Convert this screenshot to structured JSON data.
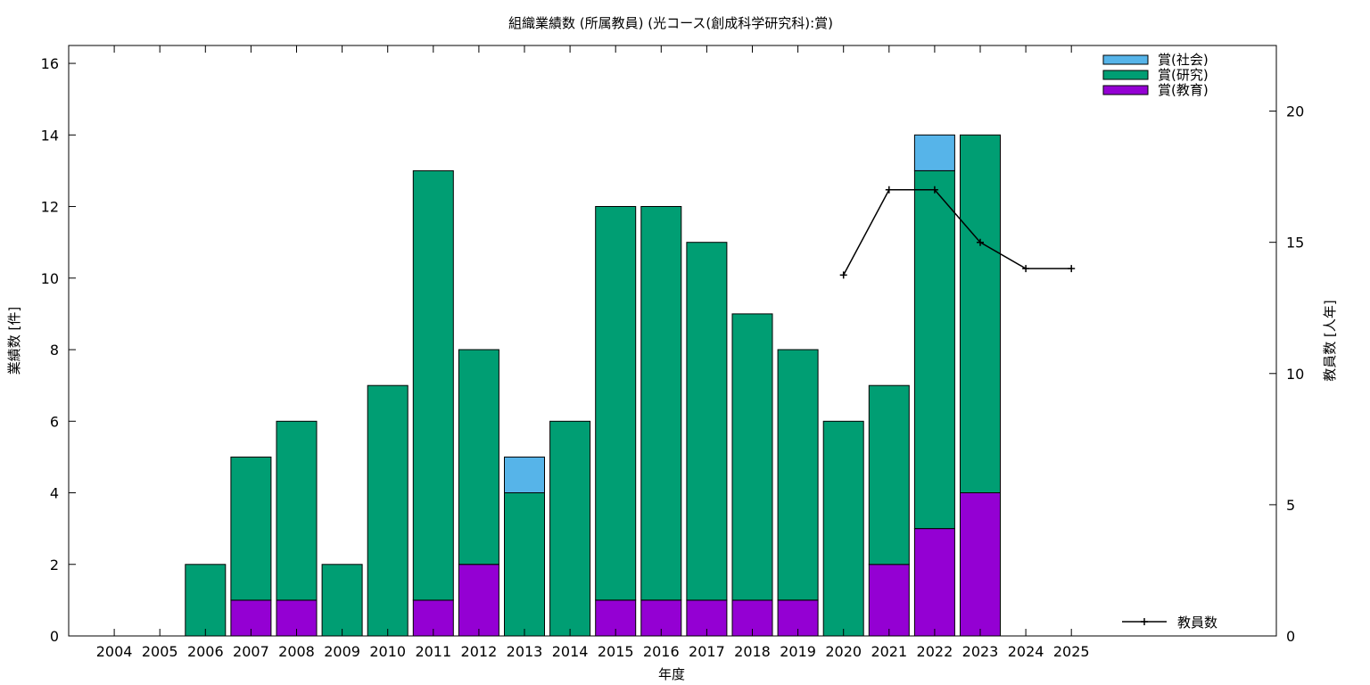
{
  "chart_data": {
    "type": "bar",
    "title": "組織業績数 (所属教員) (光コース(創成科学研究科):賞)",
    "xlabel": "年度",
    "ylabel": "業績数 [件]",
    "y2label": "教員数 [人年]",
    "categories": [
      "2004",
      "2005",
      "2006",
      "2007",
      "2008",
      "2009",
      "2010",
      "2011",
      "2012",
      "2013",
      "2014",
      "2015",
      "2016",
      "2017",
      "2018",
      "2019",
      "2020",
      "2021",
      "2022",
      "2023",
      "2024",
      "2025"
    ],
    "ylim": [
      0,
      16.5
    ],
    "y2lim": [
      0,
      22.5
    ],
    "yticks": [
      "0",
      "2",
      "4",
      "6",
      "8",
      "10",
      "12",
      "14",
      "16"
    ],
    "y2ticks": [
      "0",
      "5",
      "10",
      "15",
      "20"
    ],
    "stacked": true,
    "series": [
      {
        "name": "賞(教育)",
        "color": "#9400d3",
        "values": [
          0,
          0,
          0,
          1,
          1,
          0,
          0,
          1,
          2,
          0,
          0,
          1,
          1,
          1,
          1,
          1,
          0,
          2,
          3,
          4,
          0,
          0
        ]
      },
      {
        "name": "賞(研究)",
        "color": "#009e73",
        "values": [
          0,
          0,
          2,
          4,
          5,
          2,
          7,
          12,
          6,
          4,
          6,
          11,
          11,
          10,
          8,
          7,
          6,
          5,
          10,
          10,
          0,
          0
        ]
      },
      {
        "name": "賞(社会)",
        "color": "#56b4e9",
        "values": [
          0,
          0,
          0,
          0,
          0,
          0,
          0,
          0,
          0,
          1,
          0,
          0,
          0,
          0,
          0,
          0,
          0,
          0,
          1,
          0,
          0,
          0
        ]
      }
    ],
    "line_series": {
      "name": "教員数",
      "color": "#000000",
      "axis": "y2",
      "x": [
        "2020",
        "2021",
        "2022",
        "2023",
        "2024",
        "2025"
      ],
      "values": [
        13.75,
        17,
        17,
        15,
        14,
        14
      ]
    },
    "legend_position": "top-right",
    "line_legend_position": "bottom-right",
    "grid": false
  }
}
